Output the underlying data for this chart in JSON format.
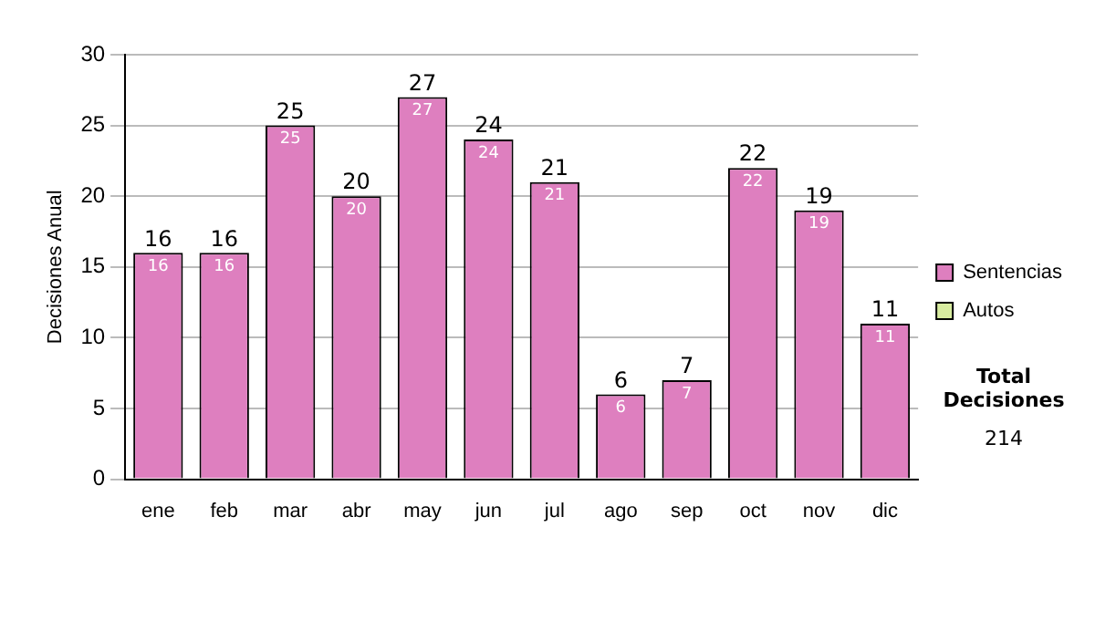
{
  "chart_data": {
    "type": "bar",
    "stacked": true,
    "ylabel": "Decisiones Anual",
    "categories": [
      "ene",
      "feb",
      "mar",
      "abr",
      "may",
      "jun",
      "jul",
      "ago",
      "sep",
      "oct",
      "nov",
      "dic"
    ],
    "series": [
      {
        "name": "Sentencias",
        "color": "#de7fbf",
        "values": [
          16,
          16,
          25,
          20,
          27,
          24,
          21,
          6,
          7,
          22,
          19,
          11
        ],
        "value_labels": [
          "16",
          "16",
          "25",
          "20",
          "27",
          "24",
          "21",
          "6",
          "7",
          "22",
          "19",
          "11"
        ]
      },
      {
        "name": "Autos",
        "color": "#d8eca0",
        "values": [
          0,
          0,
          0,
          0,
          0,
          0,
          0,
          0,
          0,
          0,
          0,
          0
        ]
      }
    ],
    "totals": [
      "16",
      "16",
      "25",
      "20",
      "27",
      "24",
      "21",
      "6",
      "7",
      "22",
      "19",
      "11"
    ],
    "ylim": [
      0,
      30
    ],
    "yticks": [
      0,
      5,
      10,
      15,
      20,
      25,
      30
    ],
    "grid": "y",
    "legend": "right",
    "annotations": [
      "Total Decisiones",
      "214"
    ]
  }
}
